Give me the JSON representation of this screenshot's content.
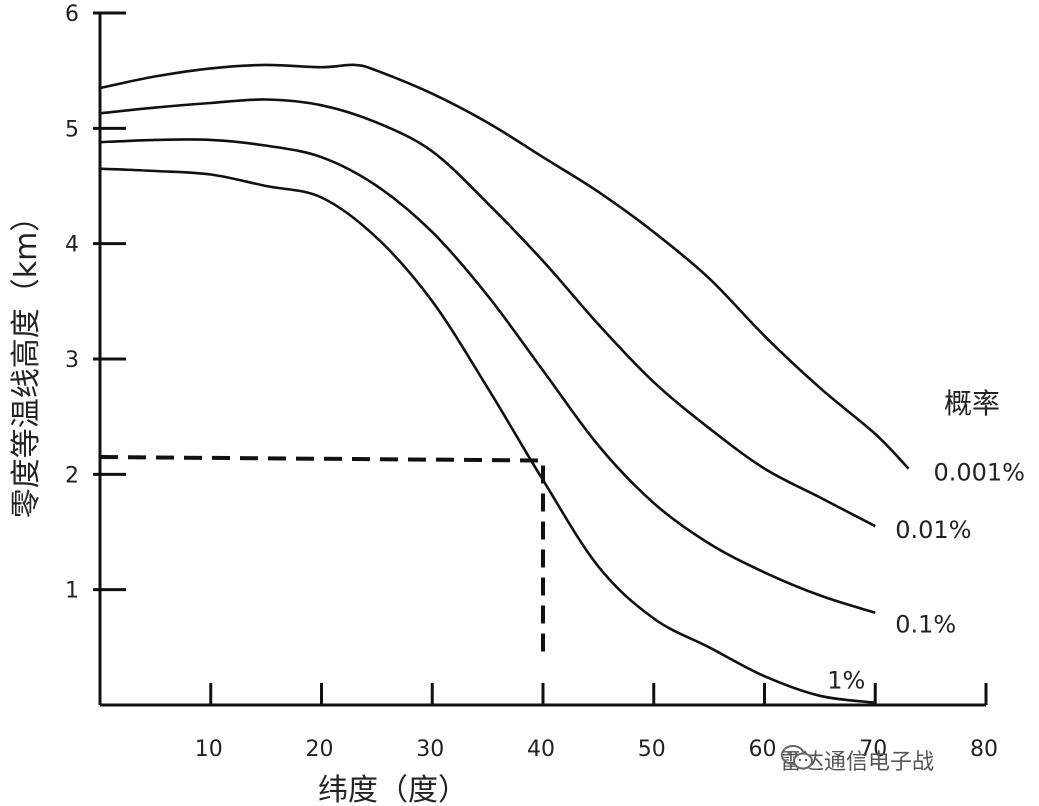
{
  "chart_data": {
    "type": "line",
    "xlabel": "纬度（度）",
    "ylabel": "零度等温线高度（km）",
    "xlim": [
      0,
      80
    ],
    "ylim": [
      0,
      6
    ],
    "x_ticks": [
      10,
      20,
      30,
      40,
      50,
      60,
      70,
      80
    ],
    "y_ticks": [
      1,
      2,
      3,
      4,
      5,
      6
    ],
    "legend_title": "概率",
    "series": [
      {
        "name": "0.001%",
        "x": [
          0,
          5,
          10,
          15,
          20,
          23,
          25,
          30,
          35,
          40,
          45,
          50,
          55,
          60,
          65,
          70,
          73
        ],
        "y": [
          5.35,
          5.45,
          5.52,
          5.55,
          5.53,
          5.55,
          5.5,
          5.3,
          5.05,
          4.75,
          4.45,
          4.1,
          3.7,
          3.2,
          2.75,
          2.35,
          2.05
        ]
      },
      {
        "name": "0.01%",
        "x": [
          0,
          5,
          10,
          15,
          20,
          25,
          30,
          35,
          40,
          45,
          50,
          55,
          60,
          65,
          70
        ],
        "y": [
          5.13,
          5.18,
          5.22,
          5.25,
          5.2,
          5.05,
          4.8,
          4.35,
          3.85,
          3.3,
          2.8,
          2.4,
          2.05,
          1.8,
          1.55
        ]
      },
      {
        "name": "0.1%",
        "x": [
          0,
          5,
          10,
          15,
          20,
          25,
          30,
          35,
          40,
          45,
          50,
          55,
          60,
          65,
          70
        ],
        "y": [
          4.88,
          4.9,
          4.9,
          4.85,
          4.75,
          4.5,
          4.1,
          3.55,
          2.9,
          2.25,
          1.75,
          1.4,
          1.15,
          0.95,
          0.8
        ]
      },
      {
        "name": "1%",
        "x": [
          0,
          5,
          10,
          15,
          20,
          25,
          30,
          35,
          40,
          45,
          50,
          55,
          60,
          65,
          70
        ],
        "y": [
          4.65,
          4.63,
          4.6,
          4.5,
          4.4,
          4.05,
          3.5,
          2.75,
          1.95,
          1.2,
          0.75,
          0.5,
          0.25,
          0.08,
          0.02
        ]
      }
    ],
    "reference_line": {
      "x": [
        0,
        40,
        40
      ],
      "y": [
        2.15,
        2.12,
        0.45
      ],
      "style": "dashed"
    }
  },
  "watermark": {
    "icon": "wechat-icon",
    "text": "雷达通信电子战"
  }
}
